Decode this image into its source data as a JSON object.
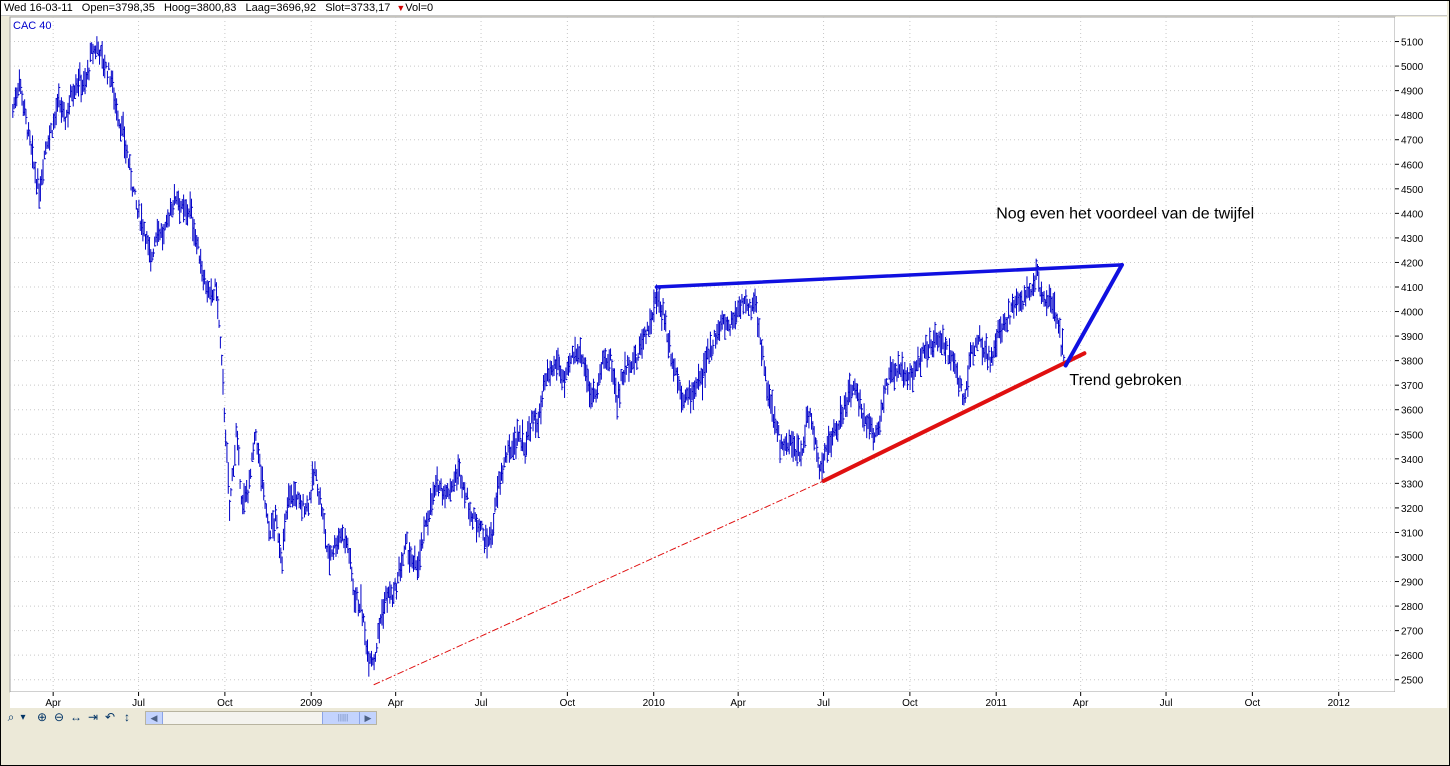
{
  "infobar": {
    "date": "Wed 16-03-11",
    "open": "Open=3798,35",
    "high": "Hoog=3800,83",
    "low": "Laag=3696,92",
    "close": "Slot=3733,17",
    "vol": "Vol=0"
  },
  "colors": {
    "price": "#0000c8",
    "resistance": "#1010e0",
    "support": "#e01010",
    "grid": "#c8c8c8",
    "label": "#0000cc"
  },
  "toolbar": {
    "icons": [
      "zoom-icon",
      "dropdown-arrow-icon",
      "zoom-in-icon",
      "zoom-out-icon",
      "fit-width-icon",
      "scroll-end-icon",
      "undo-icon",
      "vertical-fit-icon"
    ],
    "glyphs": [
      "⌕",
      "▾",
      "⊕",
      "⊖",
      "↔",
      "⇥",
      "↶",
      "↕"
    ],
    "scroll_left": "◀",
    "scroll_right": "▶",
    "scroll_thumb": "|||||"
  },
  "chart_data": {
    "type": "line",
    "title": "CAC 40",
    "series_name": "CAC 40",
    "x_range": [
      "2008-02-15",
      "2012-03-01"
    ],
    "ylim": [
      2450,
      5200
    ],
    "y_ticks": [
      2500,
      2600,
      2700,
      2800,
      2900,
      3000,
      3100,
      3200,
      3300,
      3400,
      3500,
      3600,
      3700,
      3800,
      3900,
      4000,
      4100,
      4200,
      4300,
      4400,
      4500,
      4600,
      4700,
      4800,
      4900,
      5000,
      5100
    ],
    "x_ticks": [
      {
        "date": "2008-04-01",
        "label": "Apr"
      },
      {
        "date": "2008-07-01",
        "label": "Jul"
      },
      {
        "date": "2008-10-01",
        "label": "Oct"
      },
      {
        "date": "2009-01-01",
        "label": "2009"
      },
      {
        "date": "2009-04-01",
        "label": "Apr"
      },
      {
        "date": "2009-07-01",
        "label": "Jul"
      },
      {
        "date": "2009-10-01",
        "label": "Oct"
      },
      {
        "date": "2010-01-01",
        "label": "2010"
      },
      {
        "date": "2010-04-01",
        "label": "Apr"
      },
      {
        "date": "2010-07-01",
        "label": "Jul"
      },
      {
        "date": "2010-10-01",
        "label": "Oct"
      },
      {
        "date": "2011-01-01",
        "label": "2011"
      },
      {
        "date": "2011-04-01",
        "label": "Apr"
      },
      {
        "date": "2011-07-01",
        "label": "Jul"
      },
      {
        "date": "2011-10-01",
        "label": "Oct"
      },
      {
        "date": "2012-01-01",
        "label": "2012"
      }
    ],
    "grid": true,
    "series": [
      {
        "points": [
          [
            "2008-02-18",
            4820
          ],
          [
            "2008-02-25",
            4950
          ],
          [
            "2008-03-03",
            4780
          ],
          [
            "2008-03-10",
            4620
          ],
          [
            "2008-03-17",
            4480
          ],
          [
            "2008-03-24",
            4680
          ],
          [
            "2008-03-31",
            4750
          ],
          [
            "2008-04-07",
            4850
          ],
          [
            "2008-04-14",
            4780
          ],
          [
            "2008-04-21",
            4900
          ],
          [
            "2008-04-28",
            4950
          ],
          [
            "2008-05-05",
            4920
          ],
          [
            "2008-05-12",
            5050
          ],
          [
            "2008-05-19",
            5080
          ],
          [
            "2008-05-26",
            5000
          ],
          [
            "2008-06-02",
            4950
          ],
          [
            "2008-06-09",
            4800
          ],
          [
            "2008-06-16",
            4700
          ],
          [
            "2008-06-23",
            4550
          ],
          [
            "2008-06-30",
            4400
          ],
          [
            "2008-07-07",
            4350
          ],
          [
            "2008-07-14",
            4200
          ],
          [
            "2008-07-21",
            4350
          ],
          [
            "2008-07-28",
            4300
          ],
          [
            "2008-08-04",
            4420
          ],
          [
            "2008-08-11",
            4480
          ],
          [
            "2008-08-18",
            4400
          ],
          [
            "2008-08-25",
            4420
          ],
          [
            "2008-09-01",
            4280
          ],
          [
            "2008-09-08",
            4150
          ],
          [
            "2008-09-15",
            4050
          ],
          [
            "2008-09-22",
            4100
          ],
          [
            "2008-09-29",
            3700
          ],
          [
            "2008-10-06",
            3200
          ],
          [
            "2008-10-13",
            3500
          ],
          [
            "2008-10-20",
            3200
          ],
          [
            "2008-10-27",
            3300
          ],
          [
            "2008-11-03",
            3500
          ],
          [
            "2008-11-10",
            3300
          ],
          [
            "2008-11-17",
            3100
          ],
          [
            "2008-11-24",
            3150
          ],
          [
            "2008-12-01",
            3000
          ],
          [
            "2008-12-08",
            3250
          ],
          [
            "2008-12-15",
            3250
          ],
          [
            "2008-12-22",
            3200
          ],
          [
            "2008-12-29",
            3220
          ],
          [
            "2009-01-05",
            3350
          ],
          [
            "2009-01-12",
            3200
          ],
          [
            "2009-01-19",
            3000
          ],
          [
            "2009-01-26",
            3050
          ],
          [
            "2009-02-02",
            3100
          ],
          [
            "2009-02-09",
            3050
          ],
          [
            "2009-02-16",
            2850
          ],
          [
            "2009-02-23",
            2800
          ],
          [
            "2009-03-02",
            2620
          ],
          [
            "2009-03-09",
            2580
          ],
          [
            "2009-03-16",
            2750
          ],
          [
            "2009-03-23",
            2850
          ],
          [
            "2009-03-30",
            2830
          ],
          [
            "2009-04-06",
            2950
          ],
          [
            "2009-04-13",
            3050
          ],
          [
            "2009-04-20",
            2950
          ],
          [
            "2009-04-27",
            3000
          ],
          [
            "2009-05-04",
            3150
          ],
          [
            "2009-05-11",
            3250
          ],
          [
            "2009-05-18",
            3300
          ],
          [
            "2009-05-25",
            3250
          ],
          [
            "2009-06-01",
            3300
          ],
          [
            "2009-06-08",
            3350
          ],
          [
            "2009-06-15",
            3250
          ],
          [
            "2009-06-22",
            3150
          ],
          [
            "2009-06-29",
            3150
          ],
          [
            "2009-07-06",
            3050
          ],
          [
            "2009-07-13",
            3100
          ],
          [
            "2009-07-20",
            3300
          ],
          [
            "2009-07-27",
            3400
          ],
          [
            "2009-08-03",
            3450
          ],
          [
            "2009-08-10",
            3500
          ],
          [
            "2009-08-17",
            3450
          ],
          [
            "2009-08-24",
            3550
          ],
          [
            "2009-08-31",
            3550
          ],
          [
            "2009-09-07",
            3700
          ],
          [
            "2009-09-14",
            3750
          ],
          [
            "2009-09-21",
            3800
          ],
          [
            "2009-09-28",
            3700
          ],
          [
            "2009-10-05",
            3800
          ],
          [
            "2009-10-12",
            3850
          ],
          [
            "2009-10-19",
            3800
          ],
          [
            "2009-10-26",
            3650
          ],
          [
            "2009-11-02",
            3700
          ],
          [
            "2009-11-09",
            3800
          ],
          [
            "2009-11-16",
            3800
          ],
          [
            "2009-11-23",
            3650
          ],
          [
            "2009-11-30",
            3750
          ],
          [
            "2009-12-07",
            3800
          ],
          [
            "2009-12-14",
            3800
          ],
          [
            "2009-12-21",
            3900
          ],
          [
            "2009-12-28",
            3950
          ],
          [
            "2010-01-04",
            4050
          ],
          [
            "2010-01-11",
            4000
          ],
          [
            "2010-01-18",
            3850
          ],
          [
            "2010-01-25",
            3750
          ],
          [
            "2010-02-01",
            3650
          ],
          [
            "2010-02-08",
            3650
          ],
          [
            "2010-02-15",
            3700
          ],
          [
            "2010-02-22",
            3720
          ],
          [
            "2010-03-01",
            3850
          ],
          [
            "2010-03-08",
            3900
          ],
          [
            "2010-03-15",
            3950
          ],
          [
            "2010-03-22",
            3950
          ],
          [
            "2010-03-29",
            3980
          ],
          [
            "2010-04-05",
            4050
          ],
          [
            "2010-04-12",
            4000
          ],
          [
            "2010-04-19",
            4050
          ],
          [
            "2010-04-26",
            3850
          ],
          [
            "2010-05-03",
            3650
          ],
          [
            "2010-05-10",
            3550
          ],
          [
            "2010-05-17",
            3450
          ],
          [
            "2010-05-24",
            3450
          ],
          [
            "2010-05-31",
            3450
          ],
          [
            "2010-06-07",
            3400
          ],
          [
            "2010-06-14",
            3600
          ],
          [
            "2010-06-21",
            3500
          ],
          [
            "2010-06-28",
            3350
          ],
          [
            "2010-07-05",
            3450
          ],
          [
            "2010-07-12",
            3500
          ],
          [
            "2010-07-19",
            3550
          ],
          [
            "2010-07-26",
            3650
          ],
          [
            "2010-08-02",
            3700
          ],
          [
            "2010-08-09",
            3600
          ],
          [
            "2010-08-16",
            3550
          ],
          [
            "2010-08-23",
            3500
          ],
          [
            "2010-08-30",
            3550
          ],
          [
            "2010-09-06",
            3700
          ],
          [
            "2010-09-13",
            3750
          ],
          [
            "2010-09-20",
            3750
          ],
          [
            "2010-09-27",
            3750
          ],
          [
            "2010-10-04",
            3750
          ],
          [
            "2010-10-11",
            3800
          ],
          [
            "2010-10-18",
            3850
          ],
          [
            "2010-10-25",
            3850
          ],
          [
            "2010-11-01",
            3900
          ],
          [
            "2010-11-08",
            3850
          ],
          [
            "2010-11-15",
            3800
          ],
          [
            "2010-11-22",
            3700
          ],
          [
            "2010-11-29",
            3650
          ],
          [
            "2010-12-06",
            3850
          ],
          [
            "2010-12-13",
            3900
          ],
          [
            "2010-12-20",
            3850
          ],
          [
            "2010-12-27",
            3800
          ],
          [
            "2011-01-03",
            3900
          ],
          [
            "2011-01-10",
            3950
          ],
          [
            "2011-01-17",
            4000
          ],
          [
            "2011-01-24",
            4050
          ],
          [
            "2011-01-31",
            4050
          ],
          [
            "2011-02-07",
            4100
          ],
          [
            "2011-02-14",
            4150
          ],
          [
            "2011-02-21",
            4050
          ],
          [
            "2011-02-28",
            4050
          ],
          [
            "2011-03-07",
            3950
          ],
          [
            "2011-03-14",
            3820
          ],
          [
            "2011-03-16",
            3733
          ]
        ]
      }
    ],
    "lines": [
      {
        "name": "resistance-line",
        "from": [
          "2010-01-04",
          4100
        ],
        "to": [
          "2011-05-15",
          4190
        ]
      },
      {
        "name": "support-line",
        "from": [
          "2010-07-01",
          3310
        ],
        "to": [
          "2011-04-05",
          3830
        ]
      },
      {
        "name": "support-extension-line",
        "from": [
          "2009-03-09",
          2480
        ],
        "to": [
          "2010-07-01",
          3310
        ]
      },
      {
        "name": "projection-line",
        "from": [
          "2011-03-16",
          3780
        ],
        "to": [
          "2011-05-15",
          4190
        ]
      }
    ],
    "annotations": [
      {
        "text": "Nog even het voordeel van de twijfel",
        "date": "2011-01-01",
        "y": 4380
      },
      {
        "text": "Trend gebroken",
        "date": "2011-03-20",
        "y": 3700
      }
    ]
  }
}
